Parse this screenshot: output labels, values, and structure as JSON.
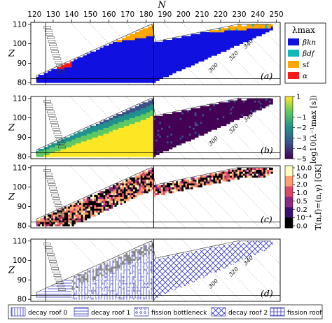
{
  "chart_data": {
    "type": "heatmap",
    "x_axis": {
      "label": "N",
      "ticks": [
        "120",
        "130",
        "140",
        "150",
        "160",
        "170",
        "180",
        "190",
        "200",
        "210",
        "220",
        "230",
        "240",
        "250"
      ],
      "range": [
        118,
        252
      ]
    },
    "y_axis": {
      "label": "Z",
      "ticks": [
        "80",
        "90",
        "100",
        "110"
      ],
      "range": [
        79,
        111
      ]
    },
    "panel_labels": [
      "(a)",
      "(b)",
      "(c)",
      "(d)"
    ],
    "isotone_labels": {
      "a": [
        "300",
        "320",
        "340"
      ],
      "b": [
        "300",
        "320",
        "340"
      ],
      "d": [
        "300",
        "320",
        "340"
      ]
    },
    "panel_a": {
      "legend_title": "λmax",
      "categories": [
        {
          "name": "βkn",
          "color": "#1010e0"
        },
        {
          "name": "βdf",
          "color": "#10b8b8"
        },
        {
          "name": "sf",
          "color": "#ffa500"
        },
        {
          "name": "α",
          "color": "#ff1a1a"
        }
      ]
    },
    "panel_b": {
      "colorbar_label": "log10(λ⁻¹max [s])",
      "colorbar_ticks": [
        "1",
        "−1",
        "−2",
        "−3",
        "−4",
        "−5"
      ],
      "colormap": [
        "#440154",
        "#3b528b",
        "#21918c",
        "#5ec962",
        "#fde725"
      ]
    },
    "panel_c": {
      "colorbar_label": "T(n,f)=(n,γ) [GK]",
      "colorbar_ticks": [
        "10.0",
        "5.0",
        "2.0",
        "1.0",
        "0.5",
        "0.2",
        "10⁻⁴",
        "0.0"
      ],
      "colormap": [
        "#000004",
        "#3b0f70",
        "#8c2981",
        "#de4968",
        "#fe9f6d",
        "#fcfdbf"
      ]
    },
    "panel_d": {
      "legend": [
        {
          "name": "decay roof 0",
          "pattern": "vertical"
        },
        {
          "name": "decay roof 1",
          "pattern": "horizontal"
        },
        {
          "name": "fission bottleneck",
          "pattern": "dots"
        },
        {
          "name": "decay roof 2",
          "pattern": "cross-diagonal"
        },
        {
          "name": "fission roof",
          "pattern": "grid"
        }
      ]
    }
  }
}
